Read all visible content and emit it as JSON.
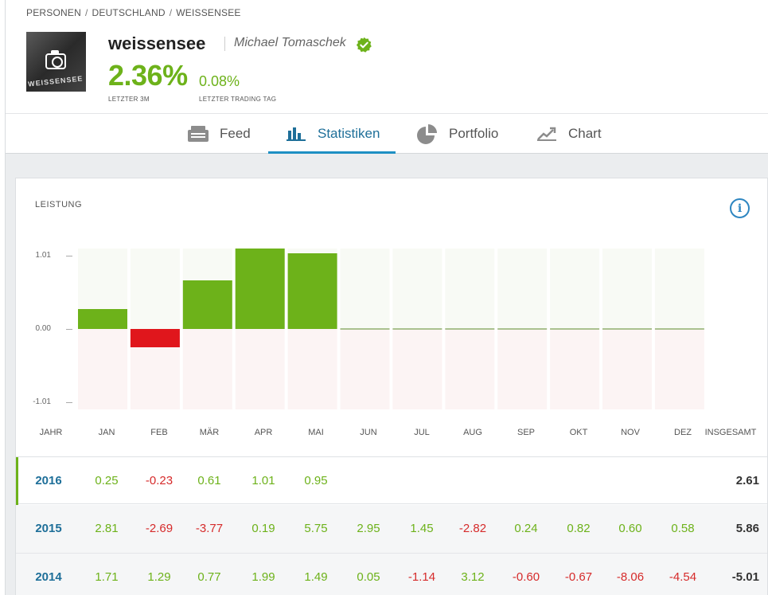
{
  "breadcrumb": [
    "PERSONEN",
    "DEUTSCHLAND",
    "WEISSENSEE"
  ],
  "avatar_text": "WEISSENSEE",
  "profile": {
    "username": "weissensee",
    "real_name": "Michael Tomaschek",
    "gain_3m": "2.36%",
    "gain_3m_label": "LETZTER 3M",
    "gain_day": "0.08%",
    "gain_day_label": "LETZTER TRADING TAG"
  },
  "tabs": [
    {
      "label": "Feed",
      "icon": "feed-icon"
    },
    {
      "label": "Statistiken",
      "icon": "bar-chart-icon",
      "active": true
    },
    {
      "label": "Portfolio",
      "icon": "pie-chart-icon"
    },
    {
      "label": "Chart",
      "icon": "line-chart-icon"
    }
  ],
  "section": {
    "title": "LEISTUNG"
  },
  "colors": {
    "positive": "#6db21a",
    "negative": "#e0161c",
    "accent": "#1e8fc3",
    "positive_bg": "#f8faf5",
    "negative_bg": "#fcf4f4"
  },
  "chart_data": {
    "type": "bar",
    "categories": [
      "JAN",
      "FEB",
      "MÄR",
      "APR",
      "MAI",
      "JUN",
      "JUL",
      "AUG",
      "SEP",
      "OKT",
      "NOV",
      "DEZ"
    ],
    "values": [
      0.25,
      -0.23,
      0.61,
      1.01,
      0.95,
      0,
      0,
      0,
      0,
      0,
      0,
      0
    ],
    "yticks": [
      "1.01",
      "0.00",
      "-1.01"
    ],
    "ylim": [
      -1.01,
      1.01
    ]
  },
  "table": {
    "col_year": "JAHR",
    "col_total": "INSGESAMT",
    "months": [
      "JAN",
      "FEB",
      "MÄR",
      "APR",
      "MAI",
      "JUN",
      "JUL",
      "AUG",
      "SEP",
      "OKT",
      "NOV",
      "DEZ"
    ],
    "rows": [
      {
        "year": "2016",
        "values": [
          "0.25",
          "-0.23",
          "0.61",
          "1.01",
          "0.95",
          "",
          "",
          "",
          "",
          "",
          "",
          ""
        ],
        "total": "2.61"
      },
      {
        "year": "2015",
        "values": [
          "2.81",
          "-2.69",
          "-3.77",
          "0.19",
          "5.75",
          "2.95",
          "1.45",
          "-2.82",
          "0.24",
          "0.82",
          "0.60",
          "0.58"
        ],
        "total": "5.86"
      },
      {
        "year": "2014",
        "values": [
          "1.71",
          "1.29",
          "0.77",
          "1.99",
          "1.49",
          "0.05",
          "-1.14",
          "3.12",
          "-0.60",
          "-0.67",
          "-8.06",
          "-4.54"
        ],
        "total": "-5.01"
      }
    ]
  }
}
